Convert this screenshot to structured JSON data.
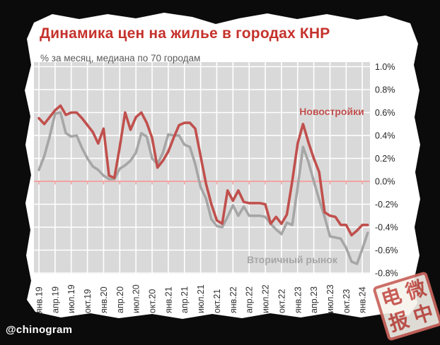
{
  "page": {
    "title": "Динамика цен на жилье в городах КНР",
    "subtitle": "% за месяц, медиана по 70 городам",
    "watermark": "@chinogram",
    "stamp": {
      "chars": [
        "电",
        "微",
        "报",
        "中"
      ]
    },
    "colors": {
      "title_red": "#c5322c",
      "line_red": "#c0504d",
      "line_gray": "#a6a6a6",
      "plot_bg": "#d9d9d9",
      "grid_white": "#ffffff",
      "zero_line": "#f2a2a2",
      "axis_text": "#303030",
      "panel_white": "#ffffff",
      "border_black": "#0b0b0b"
    }
  },
  "chart_data": {
    "type": "line",
    "title": "Динамика цен на жилье в городах КНР",
    "ylabel": "% за месяц, медиана по 70 городам",
    "x_range": {
      "start": "янв.19",
      "end": "фев.24",
      "step": "month",
      "points": 62
    },
    "x_tick_labels": [
      "янв.19",
      "апр.19",
      "июл.19",
      "окт.19",
      "янв.20",
      "апр.20",
      "июл.20",
      "окт.20",
      "янв.21",
      "апр.21",
      "июл.21",
      "окт.21",
      "янв.22",
      "апр.22",
      "июл.22",
      "окт.22",
      "янв.23",
      "апр.23",
      "июл.23",
      "окт.23",
      "янв.24"
    ],
    "y_ticks": [
      1.0,
      0.8,
      0.6,
      0.4,
      0.2,
      0.0,
      -0.2,
      -0.4,
      -0.6,
      -0.8
    ],
    "ylim": [
      -0.8,
      1.0
    ],
    "grid": "white gridlines on gray plot, vertical lines quarterly, zero line highlighted pink",
    "legend_position": "inline labels on chart",
    "series": [
      {
        "name": "Новостройки",
        "color": "#c0504d",
        "values": [
          0.55,
          0.5,
          0.56,
          0.62,
          0.66,
          0.58,
          0.6,
          0.6,
          0.55,
          0.49,
          0.43,
          0.33,
          0.46,
          0.05,
          0.03,
          0.3,
          0.6,
          0.45,
          0.56,
          0.6,
          0.51,
          0.38,
          0.12,
          0.18,
          0.26,
          0.38,
          0.49,
          0.51,
          0.51,
          0.46,
          0.22,
          -0.02,
          -0.2,
          -0.34,
          -0.37,
          -0.08,
          -0.17,
          -0.08,
          -0.18,
          -0.19,
          -0.19,
          -0.19,
          -0.2,
          -0.37,
          -0.31,
          -0.37,
          -0.29,
          0.0,
          0.33,
          0.5,
          0.34,
          0.2,
          0.08,
          -0.27,
          -0.3,
          -0.31,
          -0.38,
          -0.38,
          -0.47,
          -0.43,
          -0.38,
          -0.38
        ]
      },
      {
        "name": "Вторичный рынок",
        "color": "#a6a6a6",
        "values": [
          0.1,
          0.22,
          0.39,
          0.59,
          0.6,
          0.42,
          0.39,
          0.4,
          0.29,
          0.2,
          0.13,
          0.1,
          0.05,
          0.02,
          0.02,
          0.11,
          0.14,
          0.18,
          0.25,
          0.42,
          0.39,
          0.2,
          0.15,
          0.25,
          0.41,
          0.4,
          0.4,
          0.32,
          0.3,
          0.15,
          -0.05,
          -0.15,
          -0.33,
          -0.39,
          -0.4,
          -0.31,
          -0.21,
          -0.3,
          -0.22,
          -0.3,
          -0.3,
          -0.3,
          -0.31,
          -0.37,
          -0.42,
          -0.46,
          -0.36,
          -0.38,
          -0.05,
          0.3,
          0.17,
          0.0,
          -0.16,
          -0.31,
          -0.48,
          -0.49,
          -0.5,
          -0.58,
          -0.7,
          -0.72,
          -0.59,
          -0.45
        ]
      }
    ]
  }
}
